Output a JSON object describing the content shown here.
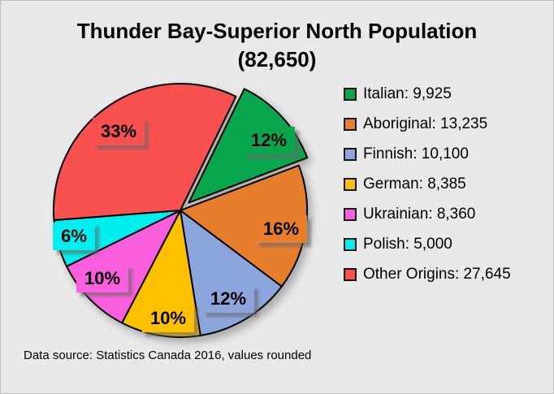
{
  "frame": {
    "background_color": "#E9E9E9",
    "border_color": "#BDBDBD"
  },
  "title": {
    "line1": "Thunder Bay-Superior North Population",
    "line2": "(82,650)"
  },
  "footnote": "Data source: Statistics Canada 2016, values rounded",
  "chart_data": {
    "type": "pie",
    "title": "Thunder Bay-Superior North Population (82,650)",
    "total": 82650,
    "start_angle_deg": 26,
    "direction": "clockwise",
    "legend_position": "right",
    "exploded_slice": "Italian",
    "slices": [
      {
        "label": "Italian",
        "value": 9925,
        "pct_label": "12%",
        "color": "#0AA64E",
        "exploded": true
      },
      {
        "label": "Aboriginal",
        "value": 13235,
        "pct_label": "16%",
        "color": "#E67E2E",
        "exploded": false
      },
      {
        "label": "Finnish",
        "value": 10100,
        "pct_label": "12%",
        "color": "#8CA5DC",
        "exploded": false
      },
      {
        "label": "German",
        "value": 8385,
        "pct_label": "10%",
        "color": "#FFC000",
        "exploded": false
      },
      {
        "label": "Ukrainian",
        "value": 8360,
        "pct_label": "10%",
        "color": "#F95EDC",
        "exploded": false
      },
      {
        "label": "Polish",
        "value": 5000,
        "pct_label": "6%",
        "color": "#00EEEE",
        "exploded": false
      },
      {
        "label": "Other Origins",
        "value": 27645,
        "pct_label": "33%",
        "color": "#F9514F",
        "exploded": false
      }
    ]
  }
}
